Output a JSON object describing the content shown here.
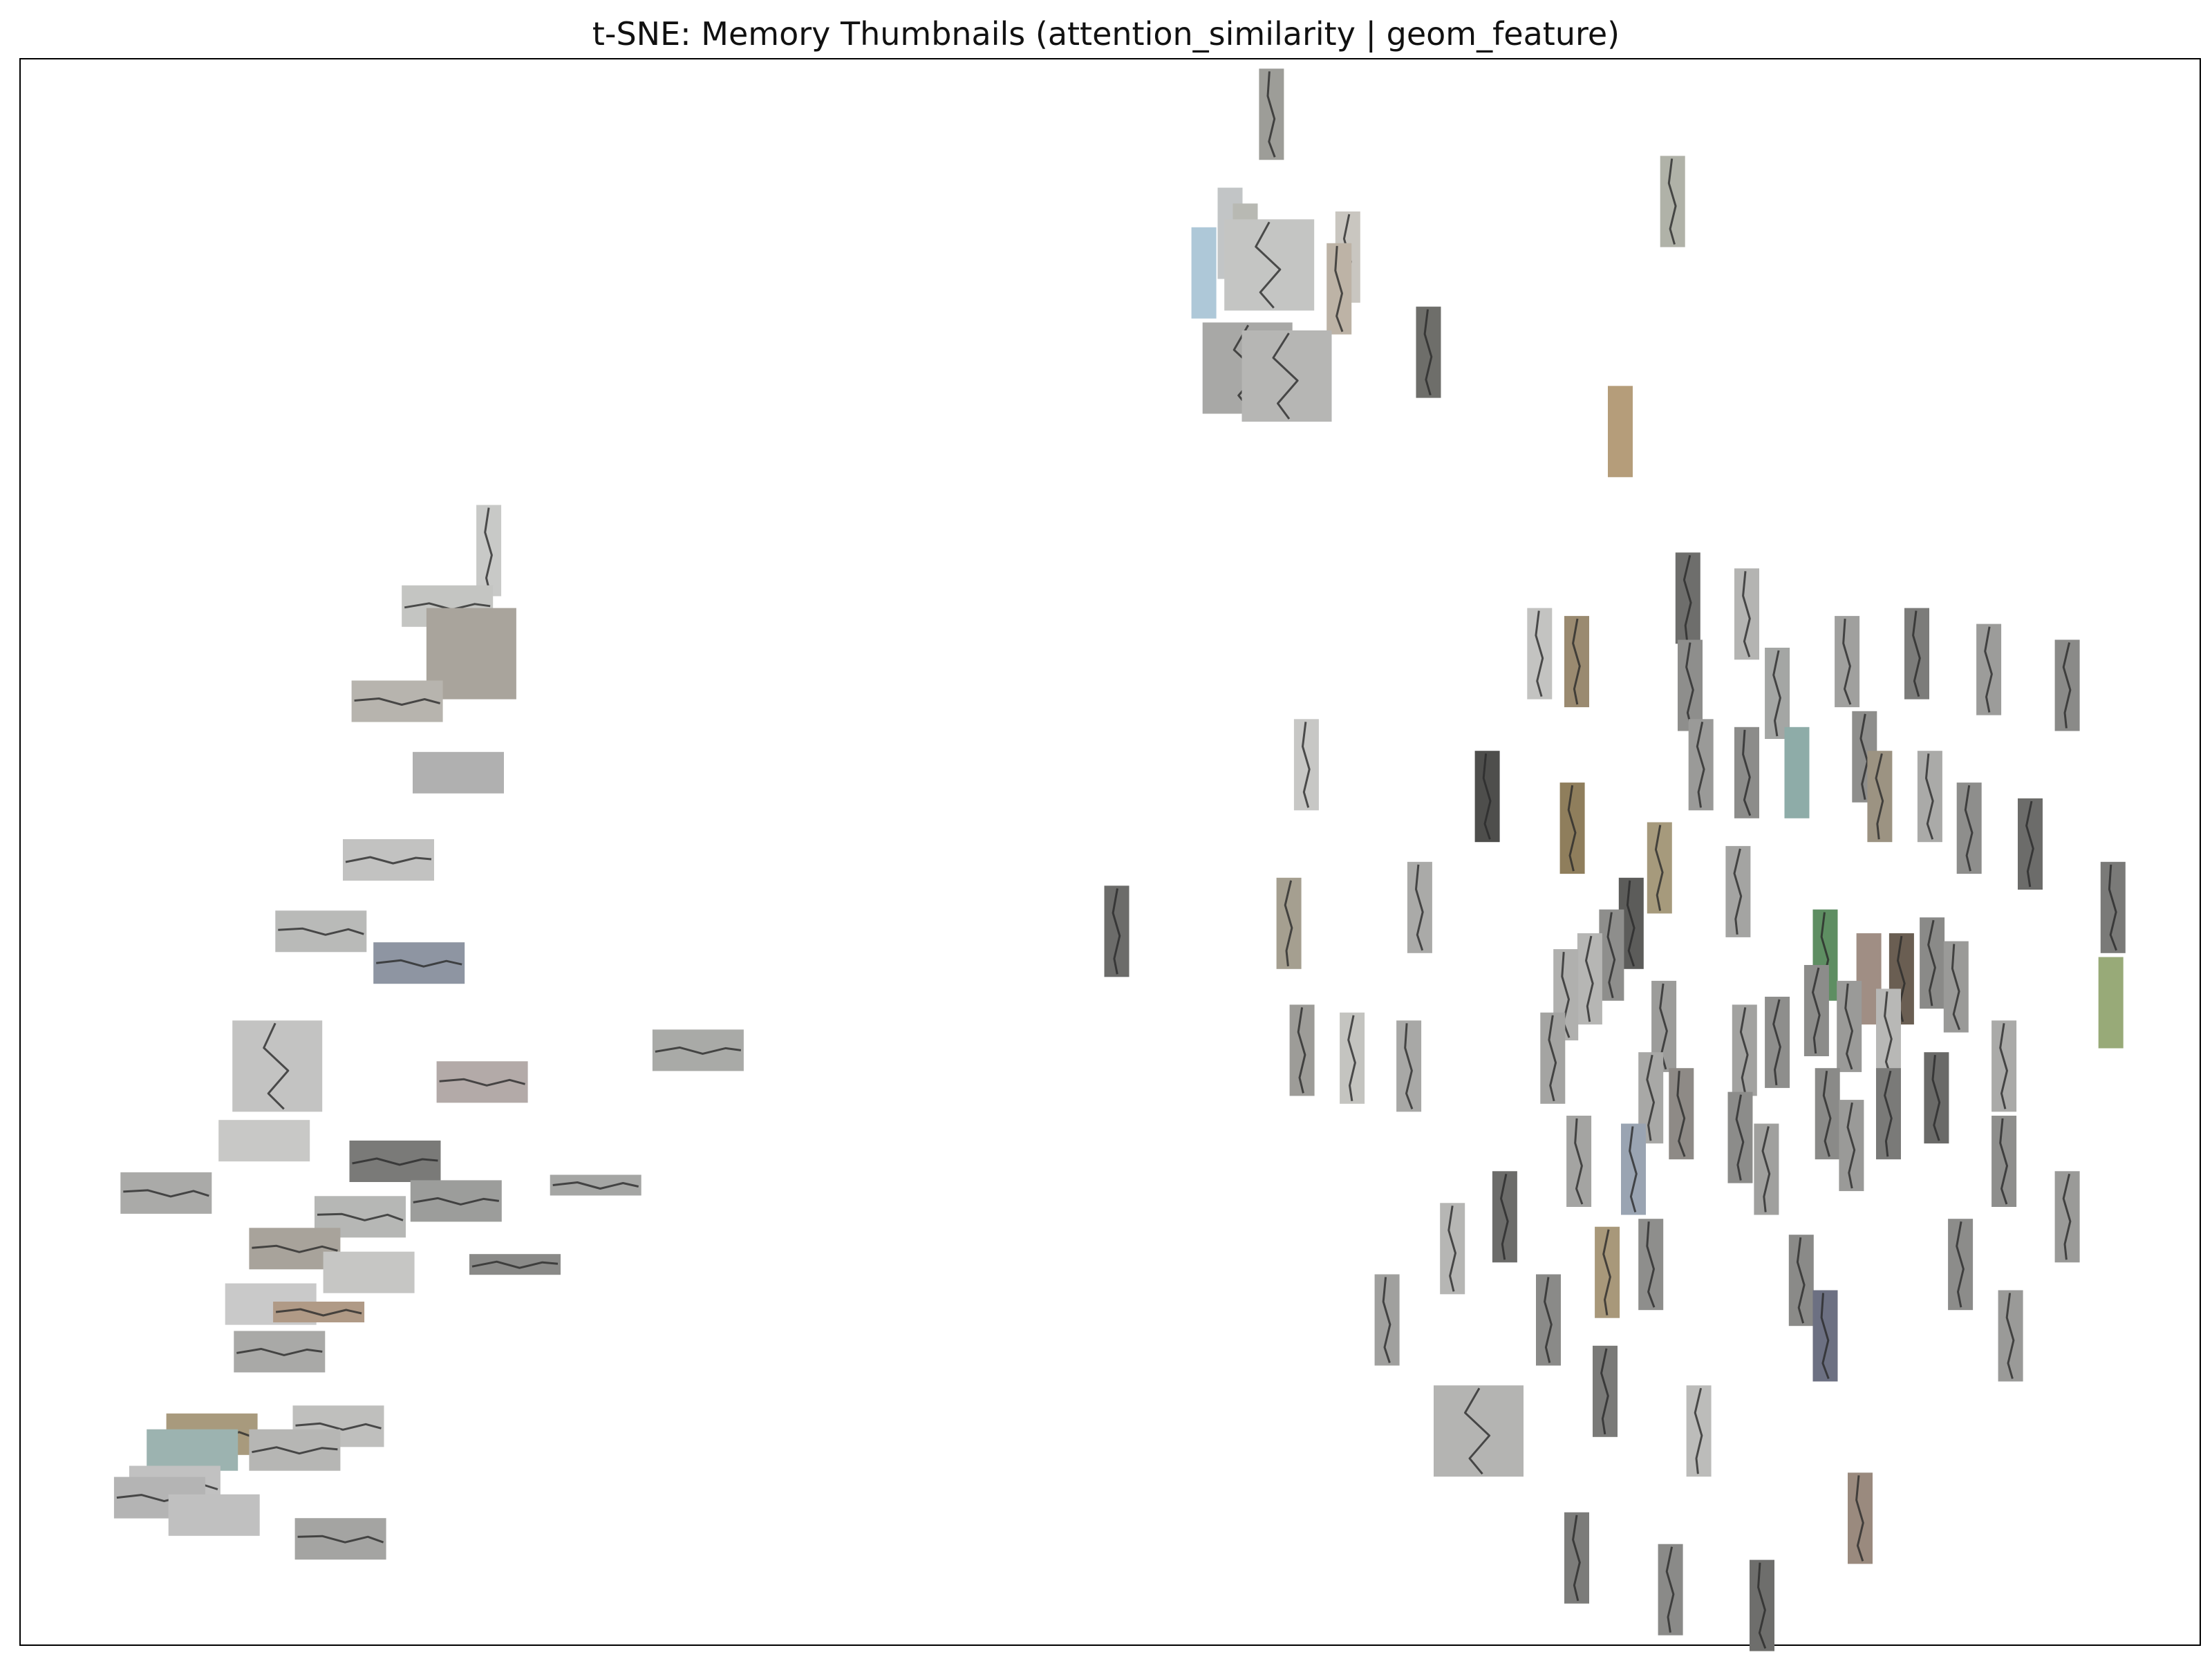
{
  "chart_data": {
    "type": "scatter",
    "title": "t-SNE: Memory Thumbnails (attention_similarity | geom_feature)",
    "xlabel": "",
    "ylabel": "",
    "xlim": [
      0,
      100
    ],
    "ylim": [
      0,
      100
    ],
    "axes_visible": false,
    "grid": false,
    "legend": "none",
    "marker": "image-thumbnail",
    "crack_color": "#2a2a2a",
    "points": [
      {
        "x": 57.4,
        "y": 96.5,
        "orient": "v",
        "big": 0,
        "color": "#9d9d98",
        "crack": 1
      },
      {
        "x": 75.8,
        "y": 91.0,
        "orient": "v",
        "big": 0,
        "color": "#b0b2a8",
        "crack": 1
      },
      {
        "x": 55.5,
        "y": 89.0,
        "orient": "v",
        "big": 0,
        "color": "#c2c5c6",
        "crack": 0
      },
      {
        "x": 54.3,
        "y": 86.5,
        "orient": "v",
        "big": 0,
        "color": "#aec8d8",
        "crack": 0
      },
      {
        "x": 56.2,
        "y": 88.0,
        "orient": "v",
        "big": 0,
        "color": "#b8b9b3",
        "crack": 0
      },
      {
        "x": 57.3,
        "y": 87.0,
        "orient": "v",
        "big": 1,
        "color": "#c4c5c3",
        "crack": 1
      },
      {
        "x": 60.9,
        "y": 87.5,
        "orient": "v",
        "big": 0,
        "color": "#c9c6c0",
        "crack": 1
      },
      {
        "x": 60.5,
        "y": 85.5,
        "orient": "v",
        "big": 0,
        "color": "#bdb3a6",
        "crack": 1
      },
      {
        "x": 64.6,
        "y": 81.5,
        "orient": "v",
        "big": 0,
        "color": "#6e6e6a",
        "crack": 1
      },
      {
        "x": 56.3,
        "y": 80.5,
        "orient": "v",
        "big": 1,
        "color": "#a8a8a6",
        "crack": 1
      },
      {
        "x": 58.1,
        "y": 80.0,
        "orient": "v",
        "big": 1,
        "color": "#b6b6b4",
        "crack": 1
      },
      {
        "x": 73.4,
        "y": 76.5,
        "orient": "v",
        "big": 0,
        "color": "#b59d7a",
        "crack": 0
      },
      {
        "x": 21.5,
        "y": 69.0,
        "orient": "v",
        "big": 0,
        "color": "#c8c9c7",
        "crack": 1
      },
      {
        "x": 19.6,
        "y": 65.5,
        "orient": "h",
        "big": 1,
        "color": "#c4c5c2",
        "crack": 1
      },
      {
        "x": 20.7,
        "y": 62.5,
        "orient": "v",
        "big": 1,
        "color": "#a9a49c",
        "crack": 0
      },
      {
        "x": 17.3,
        "y": 59.5,
        "orient": "h",
        "big": 1,
        "color": "#b7b4ae",
        "crack": 1
      },
      {
        "x": 20.1,
        "y": 55.0,
        "orient": "h",
        "big": 1,
        "color": "#b0b0b0",
        "crack": 0
      },
      {
        "x": 16.9,
        "y": 49.5,
        "orient": "h",
        "big": 1,
        "color": "#c2c2c1",
        "crack": 1
      },
      {
        "x": 13.8,
        "y": 45.0,
        "orient": "h",
        "big": 1,
        "color": "#b9bab8",
        "crack": 1
      },
      {
        "x": 18.3,
        "y": 43.0,
        "orient": "h",
        "big": 1,
        "color": "#8e95a2",
        "crack": 1
      },
      {
        "x": 31.1,
        "y": 37.5,
        "orient": "h",
        "big": 1,
        "color": "#a9aaa7",
        "crack": 1
      },
      {
        "x": 11.8,
        "y": 36.5,
        "orient": "v",
        "big": 1,
        "color": "#c3c3c2",
        "crack": 1
      },
      {
        "x": 21.2,
        "y": 35.5,
        "orient": "h",
        "big": 1,
        "color": "#b3aaa8",
        "crack": 1
      },
      {
        "x": 11.2,
        "y": 31.8,
        "orient": "h",
        "big": 1,
        "color": "#c8c8c6",
        "crack": 0
      },
      {
        "x": 17.2,
        "y": 30.5,
        "orient": "h",
        "big": 1,
        "color": "#7a7a78",
        "crack": 1
      },
      {
        "x": 6.7,
        "y": 28.5,
        "orient": "h",
        "big": 1,
        "color": "#aaaaa8",
        "crack": 1
      },
      {
        "x": 26.4,
        "y": 29.0,
        "orient": "h",
        "big": 0,
        "color": "#a5a6a4",
        "crack": 1
      },
      {
        "x": 20.0,
        "y": 28.0,
        "orient": "h",
        "big": 1,
        "color": "#9c9d9b",
        "crack": 1
      },
      {
        "x": 15.6,
        "y": 27.0,
        "orient": "h",
        "big": 1,
        "color": "#b6b7b5",
        "crack": 1
      },
      {
        "x": 12.6,
        "y": 25.0,
        "orient": "h",
        "big": 1,
        "color": "#a8a39b",
        "crack": 1
      },
      {
        "x": 16.0,
        "y": 23.5,
        "orient": "h",
        "big": 1,
        "color": "#c6c6c4",
        "crack": 0
      },
      {
        "x": 22.7,
        "y": 24.0,
        "orient": "h",
        "big": 0,
        "color": "#8a8a88",
        "crack": 1
      },
      {
        "x": 11.5,
        "y": 21.5,
        "orient": "h",
        "big": 1,
        "color": "#c9c9c9",
        "crack": 0
      },
      {
        "x": 13.7,
        "y": 21.0,
        "orient": "h",
        "big": 0,
        "color": "#b09a86",
        "crack": 1
      },
      {
        "x": 11.9,
        "y": 18.5,
        "orient": "h",
        "big": 1,
        "color": "#a9a9a7",
        "crack": 1
      },
      {
        "x": 8.8,
        "y": 13.3,
        "orient": "h",
        "big": 1,
        "color": "#a89a7d",
        "crack": 1
      },
      {
        "x": 14.6,
        "y": 13.8,
        "orient": "h",
        "big": 1,
        "color": "#bfbfbd",
        "crack": 1
      },
      {
        "x": 7.9,
        "y": 12.3,
        "orient": "h",
        "big": 1,
        "color": "#9cb3b0",
        "crack": 0
      },
      {
        "x": 12.6,
        "y": 12.3,
        "orient": "h",
        "big": 1,
        "color": "#b6b6b4",
        "crack": 1
      },
      {
        "x": 7.1,
        "y": 10.0,
        "orient": "h",
        "big": 1,
        "color": "#c1c1c1",
        "crack": 1
      },
      {
        "x": 6.4,
        "y": 9.3,
        "orient": "h",
        "big": 1,
        "color": "#b4b4b4",
        "crack": 1
      },
      {
        "x": 8.9,
        "y": 8.2,
        "orient": "h",
        "big": 1,
        "color": "#c0c0c0",
        "crack": 0
      },
      {
        "x": 14.7,
        "y": 6.7,
        "orient": "h",
        "big": 1,
        "color": "#a4a4a2",
        "crack": 1
      },
      {
        "x": 59.0,
        "y": 55.5,
        "orient": "v",
        "big": 0,
        "color": "#c7c7c5",
        "crack": 1
      },
      {
        "x": 50.3,
        "y": 45.0,
        "orient": "v",
        "big": 0,
        "color": "#6c6c6a",
        "crack": 1
      },
      {
        "x": 58.2,
        "y": 45.5,
        "orient": "v",
        "big": 0,
        "color": "#a59f90",
        "crack": 1
      },
      {
        "x": 64.2,
        "y": 46.5,
        "orient": "v",
        "big": 0,
        "color": "#aaaaa8",
        "crack": 1
      },
      {
        "x": 58.8,
        "y": 37.5,
        "orient": "v",
        "big": 0,
        "color": "#9d9c98",
        "crack": 1
      },
      {
        "x": 61.1,
        "y": 37.0,
        "orient": "v",
        "big": 0,
        "color": "#c4c4c0",
        "crack": 1
      },
      {
        "x": 63.7,
        "y": 36.5,
        "orient": "v",
        "big": 0,
        "color": "#a8a8a6",
        "crack": 1
      },
      {
        "x": 69.7,
        "y": 62.5,
        "orient": "v",
        "big": 0,
        "color": "#c3c3c1",
        "crack": 1
      },
      {
        "x": 71.4,
        "y": 62.0,
        "orient": "v",
        "big": 0,
        "color": "#9a8a70",
        "crack": 1
      },
      {
        "x": 76.5,
        "y": 66.0,
        "orient": "v",
        "big": 0,
        "color": "#6e6e6c",
        "crack": 1
      },
      {
        "x": 79.2,
        "y": 65.0,
        "orient": "v",
        "big": 0,
        "color": "#b4b4b2",
        "crack": 1
      },
      {
        "x": 76.6,
        "y": 60.5,
        "orient": "v",
        "big": 0,
        "color": "#8e8e8c",
        "crack": 1
      },
      {
        "x": 80.6,
        "y": 60.0,
        "orient": "v",
        "big": 0,
        "color": "#a4a6a4",
        "crack": 1
      },
      {
        "x": 83.8,
        "y": 62.0,
        "orient": "v",
        "big": 0,
        "color": "#a0a09e",
        "crack": 1
      },
      {
        "x": 87.0,
        "y": 62.5,
        "orient": "v",
        "big": 0,
        "color": "#7c7c7a",
        "crack": 1
      },
      {
        "x": 90.3,
        "y": 61.5,
        "orient": "v",
        "big": 0,
        "color": "#9c9c9a",
        "crack": 1
      },
      {
        "x": 93.9,
        "y": 60.5,
        "orient": "v",
        "big": 0,
        "color": "#8a8a88",
        "crack": 1
      },
      {
        "x": 67.3,
        "y": 53.5,
        "orient": "v",
        "big": 0,
        "color": "#4e4e4c",
        "crack": 1
      },
      {
        "x": 71.2,
        "y": 51.5,
        "orient": "v",
        "big": 0,
        "color": "#8f7e5c",
        "crack": 1
      },
      {
        "x": 77.1,
        "y": 55.5,
        "orient": "v",
        "big": 0,
        "color": "#9a9a98",
        "crack": 1
      },
      {
        "x": 79.2,
        "y": 55.0,
        "orient": "v",
        "big": 0,
        "color": "#8c8c8a",
        "crack": 1
      },
      {
        "x": 81.5,
        "y": 55.0,
        "orient": "v",
        "big": 0,
        "color": "#8eaca8",
        "crack": 0
      },
      {
        "x": 84.6,
        "y": 56.0,
        "orient": "v",
        "big": 0,
        "color": "#8e8e8c",
        "crack": 1
      },
      {
        "x": 85.3,
        "y": 53.5,
        "orient": "v",
        "big": 0,
        "color": "#9c9382",
        "crack": 1
      },
      {
        "x": 87.6,
        "y": 53.5,
        "orient": "v",
        "big": 0,
        "color": "#aaaaa8",
        "crack": 1
      },
      {
        "x": 89.4,
        "y": 51.5,
        "orient": "v",
        "big": 0,
        "color": "#8e8e8c",
        "crack": 1
      },
      {
        "x": 92.2,
        "y": 50.5,
        "orient": "v",
        "big": 0,
        "color": "#6c6c6a",
        "crack": 1
      },
      {
        "x": 96.0,
        "y": 46.5,
        "orient": "v",
        "big": 0,
        "color": "#7a7a78",
        "crack": 1
      },
      {
        "x": 95.9,
        "y": 40.5,
        "orient": "v",
        "big": 0,
        "color": "#98aa78",
        "crack": 0
      },
      {
        "x": 75.2,
        "y": 49.0,
        "orient": "v",
        "big": 0,
        "color": "#a69a7c",
        "crack": 1
      },
      {
        "x": 78.8,
        "y": 47.5,
        "orient": "v",
        "big": 0,
        "color": "#a4a4a2",
        "crack": 1
      },
      {
        "x": 73.9,
        "y": 45.5,
        "orient": "v",
        "big": 0,
        "color": "#5c5c5a",
        "crack": 1
      },
      {
        "x": 73.0,
        "y": 43.5,
        "orient": "v",
        "big": 0,
        "color": "#8e8e8c",
        "crack": 1
      },
      {
        "x": 72.0,
        "y": 42.0,
        "orient": "v",
        "big": 0,
        "color": "#b6b6b4",
        "crack": 1
      },
      {
        "x": 70.9,
        "y": 41.0,
        "orient": "v",
        "big": 0,
        "color": "#b0b0ae",
        "crack": 1
      },
      {
        "x": 82.8,
        "y": 43.5,
        "orient": "v",
        "big": 0,
        "color": "#5e8e62",
        "crack": 1
      },
      {
        "x": 84.8,
        "y": 42.0,
        "orient": "v",
        "big": 0,
        "color": "#a08e84",
        "crack": 0
      },
      {
        "x": 82.4,
        "y": 40.0,
        "orient": "v",
        "big": 0,
        "color": "#8c8c8a",
        "crack": 1
      },
      {
        "x": 83.9,
        "y": 39.0,
        "orient": "v",
        "big": 0,
        "color": "#9a9a98",
        "crack": 1
      },
      {
        "x": 86.3,
        "y": 42.0,
        "orient": "v",
        "big": 0,
        "color": "#6a5e52",
        "crack": 1
      },
      {
        "x": 87.7,
        "y": 43.0,
        "orient": "v",
        "big": 0,
        "color": "#8a8a88",
        "crack": 1
      },
      {
        "x": 88.8,
        "y": 41.5,
        "orient": "v",
        "big": 0,
        "color": "#9a9a98",
        "crack": 1
      },
      {
        "x": 75.4,
        "y": 39.0,
        "orient": "v",
        "big": 0,
        "color": "#9c9c9a",
        "crack": 1
      },
      {
        "x": 79.1,
        "y": 37.5,
        "orient": "v",
        "big": 0,
        "color": "#a2a2a0",
        "crack": 1
      },
      {
        "x": 80.6,
        "y": 38.0,
        "orient": "v",
        "big": 0,
        "color": "#8e8e8c",
        "crack": 1
      },
      {
        "x": 85.7,
        "y": 38.5,
        "orient": "v",
        "big": 0,
        "color": "#b8b8b6",
        "crack": 1
      },
      {
        "x": 70.3,
        "y": 37.0,
        "orient": "v",
        "big": 0,
        "color": "#a4a4a2",
        "crack": 1
      },
      {
        "x": 74.8,
        "y": 34.5,
        "orient": "v",
        "big": 0,
        "color": "#a8a8a6",
        "crack": 1
      },
      {
        "x": 76.2,
        "y": 33.5,
        "orient": "v",
        "big": 0,
        "color": "#8e8a86",
        "crack": 1
      },
      {
        "x": 82.9,
        "y": 33.5,
        "orient": "v",
        "big": 0,
        "color": "#8a8a88",
        "crack": 1
      },
      {
        "x": 84.0,
        "y": 31.5,
        "orient": "v",
        "big": 0,
        "color": "#9a9a98",
        "crack": 1
      },
      {
        "x": 85.7,
        "y": 33.5,
        "orient": "v",
        "big": 0,
        "color": "#7a7a78",
        "crack": 1
      },
      {
        "x": 87.9,
        "y": 34.5,
        "orient": "v",
        "big": 0,
        "color": "#6a6a68",
        "crack": 1
      },
      {
        "x": 91.0,
        "y": 36.5,
        "orient": "v",
        "big": 0,
        "color": "#aaaaa8",
        "crack": 1
      },
      {
        "x": 68.1,
        "y": 27.0,
        "orient": "v",
        "big": 0,
        "color": "#6c6c6a",
        "crack": 1
      },
      {
        "x": 71.5,
        "y": 30.5,
        "orient": "v",
        "big": 0,
        "color": "#a4a4a2",
        "crack": 1
      },
      {
        "x": 74.0,
        "y": 30.0,
        "orient": "v",
        "big": 0,
        "color": "#9aa4b2",
        "crack": 1
      },
      {
        "x": 78.9,
        "y": 32.0,
        "orient": "v",
        "big": 0,
        "color": "#8c8c8a",
        "crack": 1
      },
      {
        "x": 80.1,
        "y": 30.0,
        "orient": "v",
        "big": 0,
        "color": "#a0a09e",
        "crack": 1
      },
      {
        "x": 91.0,
        "y": 30.5,
        "orient": "v",
        "big": 0,
        "color": "#8e8e8c",
        "crack": 1
      },
      {
        "x": 65.7,
        "y": 25.0,
        "orient": "v",
        "big": 0,
        "color": "#b6b6b4",
        "crack": 1
      },
      {
        "x": 72.8,
        "y": 23.5,
        "orient": "v",
        "big": 0,
        "color": "#a8987a",
        "crack": 1
      },
      {
        "x": 74.8,
        "y": 24.0,
        "orient": "v",
        "big": 0,
        "color": "#8e8e8c",
        "crack": 1
      },
      {
        "x": 81.7,
        "y": 23.0,
        "orient": "v",
        "big": 0,
        "color": "#8a8a88",
        "crack": 1
      },
      {
        "x": 89.0,
        "y": 24.0,
        "orient": "v",
        "big": 0,
        "color": "#8c8c8a",
        "crack": 1
      },
      {
        "x": 93.9,
        "y": 27.0,
        "orient": "v",
        "big": 0,
        "color": "#9a9a98",
        "crack": 1
      },
      {
        "x": 62.7,
        "y": 20.5,
        "orient": "v",
        "big": 0,
        "color": "#a0a09e",
        "crack": 1
      },
      {
        "x": 70.1,
        "y": 20.5,
        "orient": "v",
        "big": 0,
        "color": "#8a8a88",
        "crack": 1
      },
      {
        "x": 72.7,
        "y": 16.0,
        "orient": "v",
        "big": 0,
        "color": "#7a7a78",
        "crack": 1
      },
      {
        "x": 82.8,
        "y": 19.5,
        "orient": "v",
        "big": 0,
        "color": "#6c7082",
        "crack": 1
      },
      {
        "x": 91.3,
        "y": 19.5,
        "orient": "v",
        "big": 0,
        "color": "#9a9a98",
        "crack": 1
      },
      {
        "x": 66.9,
        "y": 13.5,
        "orient": "v",
        "big": 1,
        "color": "#b4b4b2",
        "crack": 1
      },
      {
        "x": 77.0,
        "y": 13.5,
        "orient": "v",
        "big": 0,
        "color": "#bcbcba",
        "crack": 1
      },
      {
        "x": 84.4,
        "y": 8.0,
        "orient": "v",
        "big": 0,
        "color": "#9a8a7e",
        "crack": 1
      },
      {
        "x": 71.4,
        "y": 5.5,
        "orient": "v",
        "big": 0,
        "color": "#7c7c7a",
        "crack": 1
      },
      {
        "x": 75.7,
        "y": 3.5,
        "orient": "v",
        "big": 0,
        "color": "#8a8a88",
        "crack": 1
      },
      {
        "x": 79.9,
        "y": 2.5,
        "orient": "v",
        "big": 0,
        "color": "#6e6e6c",
        "crack": 1
      }
    ]
  }
}
